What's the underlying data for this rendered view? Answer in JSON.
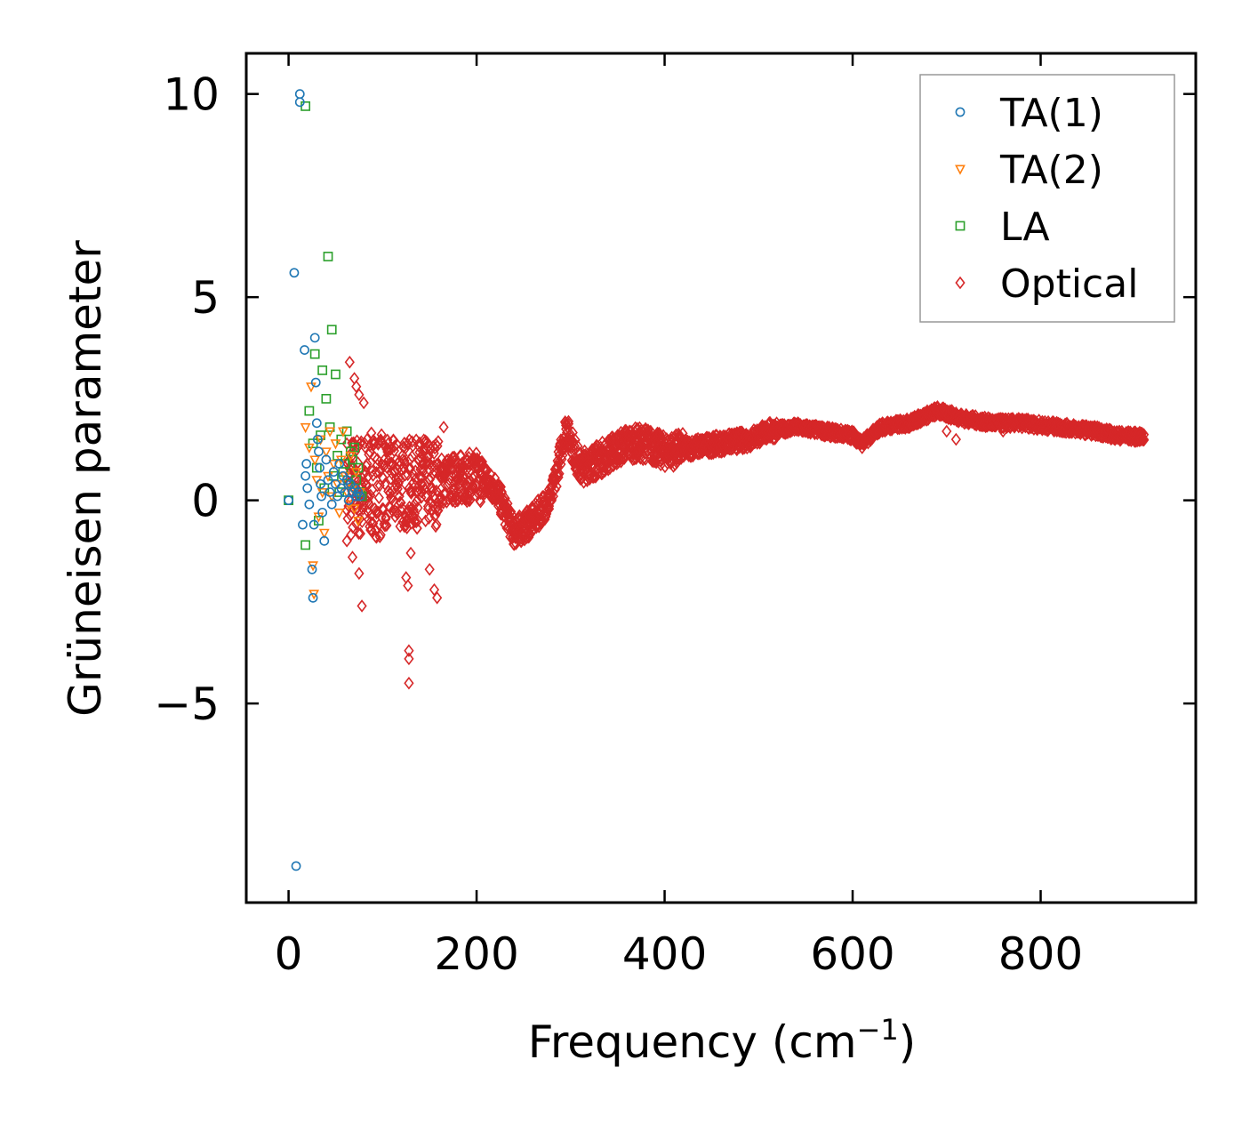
{
  "chart_data": {
    "type": "scatter",
    "title": "",
    "xlabel": "Frequency (cm",
    "xlabel_sup": "−1",
    "xlabel_close": ")",
    "ylabel": "Grüneisen parameter",
    "xlim": [
      -45,
      965
    ],
    "ylim": [
      -9.9,
      11.0
    ],
    "xticks": [
      0,
      200,
      400,
      600,
      800
    ],
    "xtick_labels": [
      "0",
      "200",
      "400",
      "600",
      "800"
    ],
    "yticks": [
      -5,
      0,
      5,
      10
    ],
    "ytick_labels": [
      "−5",
      "0",
      "5",
      "10"
    ],
    "legend_position": "top-right",
    "colors": {
      "TA(1)": "#1f77b4",
      "TA(2)": "#ff7f0e",
      "LA": "#2ca02c",
      "Optical": "#d62728"
    },
    "series": [
      {
        "name": "TA(1)",
        "marker": "circle",
        "points": [
          [
            0,
            0
          ],
          [
            6,
            5.6
          ],
          [
            8,
            -9.0
          ],
          [
            12,
            10.0
          ],
          [
            12,
            9.8
          ],
          [
            15,
            -0.6
          ],
          [
            17,
            3.7
          ],
          [
            18,
            0.6
          ],
          [
            19,
            0.9
          ],
          [
            20,
            0.3
          ],
          [
            22,
            -0.1
          ],
          [
            25,
            -1.7
          ],
          [
            26,
            -2.4
          ],
          [
            27,
            -0.6
          ],
          [
            28,
            4.0
          ],
          [
            29,
            2.9
          ],
          [
            30,
            1.9
          ],
          [
            31,
            1.5
          ],
          [
            32,
            1.2
          ],
          [
            33,
            0.8
          ],
          [
            34,
            0.4
          ],
          [
            35,
            0.1
          ],
          [
            36,
            -0.3
          ],
          [
            38,
            -1.0
          ],
          [
            40,
            1.0
          ],
          [
            42,
            0.5
          ],
          [
            44,
            0.2
          ],
          [
            46,
            -0.1
          ],
          [
            48,
            0.7
          ],
          [
            50,
            0.4
          ],
          [
            52,
            0.1
          ],
          [
            54,
            0.9
          ],
          [
            56,
            0.3
          ],
          [
            58,
            0.6
          ],
          [
            60,
            0.2
          ],
          [
            62,
            0.5
          ],
          [
            64,
            0.0
          ],
          [
            66,
            0.4
          ],
          [
            68,
            0.2
          ],
          [
            70,
            0.3
          ],
          [
            72,
            0.1
          ],
          [
            74,
            0.2
          ],
          [
            76,
            0.1
          ]
        ]
      },
      {
        "name": "TA(2)",
        "marker": "triangle-down",
        "points": [
          [
            18,
            1.8
          ],
          [
            22,
            1.3
          ],
          [
            24,
            2.8
          ],
          [
            26,
            -1.6
          ],
          [
            27,
            -2.3
          ],
          [
            28,
            1.0
          ],
          [
            30,
            0.5
          ],
          [
            32,
            -0.4
          ],
          [
            34,
            1.5
          ],
          [
            36,
            0.2
          ],
          [
            38,
            -0.8
          ],
          [
            40,
            1.2
          ],
          [
            42,
            0.6
          ],
          [
            44,
            1.7
          ],
          [
            46,
            0.1
          ],
          [
            48,
            0.9
          ],
          [
            50,
            1.4
          ],
          [
            52,
            0.4
          ],
          [
            54,
            -0.3
          ],
          [
            56,
            1.0
          ],
          [
            58,
            1.7
          ],
          [
            60,
            0.6
          ],
          [
            62,
            0.2
          ],
          [
            64,
            -0.1
          ],
          [
            66,
            1.1
          ],
          [
            68,
            0.3
          ],
          [
            70,
            -0.2
          ],
          [
            72,
            0.7
          ],
          [
            74,
            -0.5
          ],
          [
            76,
            0.2
          ]
        ]
      },
      {
        "name": "LA",
        "marker": "square",
        "points": [
          [
            0,
            0
          ],
          [
            18,
            9.7
          ],
          [
            18,
            -1.1
          ],
          [
            22,
            2.2
          ],
          [
            26,
            1.4
          ],
          [
            28,
            3.6
          ],
          [
            30,
            0.8
          ],
          [
            32,
            -0.5
          ],
          [
            34,
            1.6
          ],
          [
            36,
            3.2
          ],
          [
            38,
            0.3
          ],
          [
            40,
            2.5
          ],
          [
            42,
            6.0
          ],
          [
            44,
            1.8
          ],
          [
            46,
            4.2
          ],
          [
            48,
            0.6
          ],
          [
            50,
            3.1
          ],
          [
            52,
            1.1
          ],
          [
            54,
            0.2
          ],
          [
            56,
            1.5
          ],
          [
            58,
            0.7
          ],
          [
            60,
            0.9
          ],
          [
            62,
            1.7
          ],
          [
            64,
            0.4
          ],
          [
            66,
            1.2
          ],
          [
            68,
            1.0
          ],
          [
            70,
            1.3
          ],
          [
            72,
            0.5
          ],
          [
            74,
            0.8
          ],
          [
            76,
            0.2
          ],
          [
            78,
            0.1
          ]
        ]
      },
      {
        "name": "Optical",
        "marker": "diamond",
        "points": [],
        "curve": [
          [
            62,
            0.3
          ],
          [
            100,
            0.4
          ],
          [
            140,
            0.4
          ],
          [
            170,
            0.5
          ],
          [
            200,
            0.6
          ],
          [
            220,
            0.3
          ],
          [
            240,
            -0.8
          ],
          [
            260,
            -0.5
          ],
          [
            280,
            0.1
          ],
          [
            295,
            1.8
          ],
          [
            310,
            0.8
          ],
          [
            330,
            1.0
          ],
          [
            360,
            1.4
          ],
          [
            380,
            1.4
          ],
          [
            400,
            1.2
          ],
          [
            430,
            1.3
          ],
          [
            460,
            1.4
          ],
          [
            490,
            1.5
          ],
          [
            510,
            1.7
          ],
          [
            540,
            1.8
          ],
          [
            570,
            1.7
          ],
          [
            600,
            1.6
          ],
          [
            610,
            1.4
          ],
          [
            630,
            1.8
          ],
          [
            660,
            1.9
          ],
          [
            690,
            2.2
          ],
          [
            720,
            2.0
          ],
          [
            750,
            1.9
          ],
          [
            780,
            1.9
          ],
          [
            820,
            1.8
          ],
          [
            860,
            1.7
          ],
          [
            880,
            1.6
          ],
          [
            910,
            1.55
          ]
        ],
        "outliers": [
          [
            65,
            3.4
          ],
          [
            70,
            3.0
          ],
          [
            72,
            2.8
          ],
          [
            75,
            2.6
          ],
          [
            80,
            2.4
          ],
          [
            68,
            -1.4
          ],
          [
            75,
            -1.8
          ],
          [
            78,
            -2.6
          ],
          [
            125,
            -1.9
          ],
          [
            127,
            -2.1
          ],
          [
            130,
            -1.3
          ],
          [
            128,
            -3.7
          ],
          [
            128,
            -3.9
          ],
          [
            128,
            -4.5
          ],
          [
            150,
            -1.7
          ],
          [
            155,
            -2.2
          ],
          [
            158,
            -2.4
          ],
          [
            165,
            1.8
          ],
          [
            700,
            1.7
          ],
          [
            710,
            1.5
          ],
          [
            760,
            1.7
          ]
        ]
      }
    ]
  }
}
